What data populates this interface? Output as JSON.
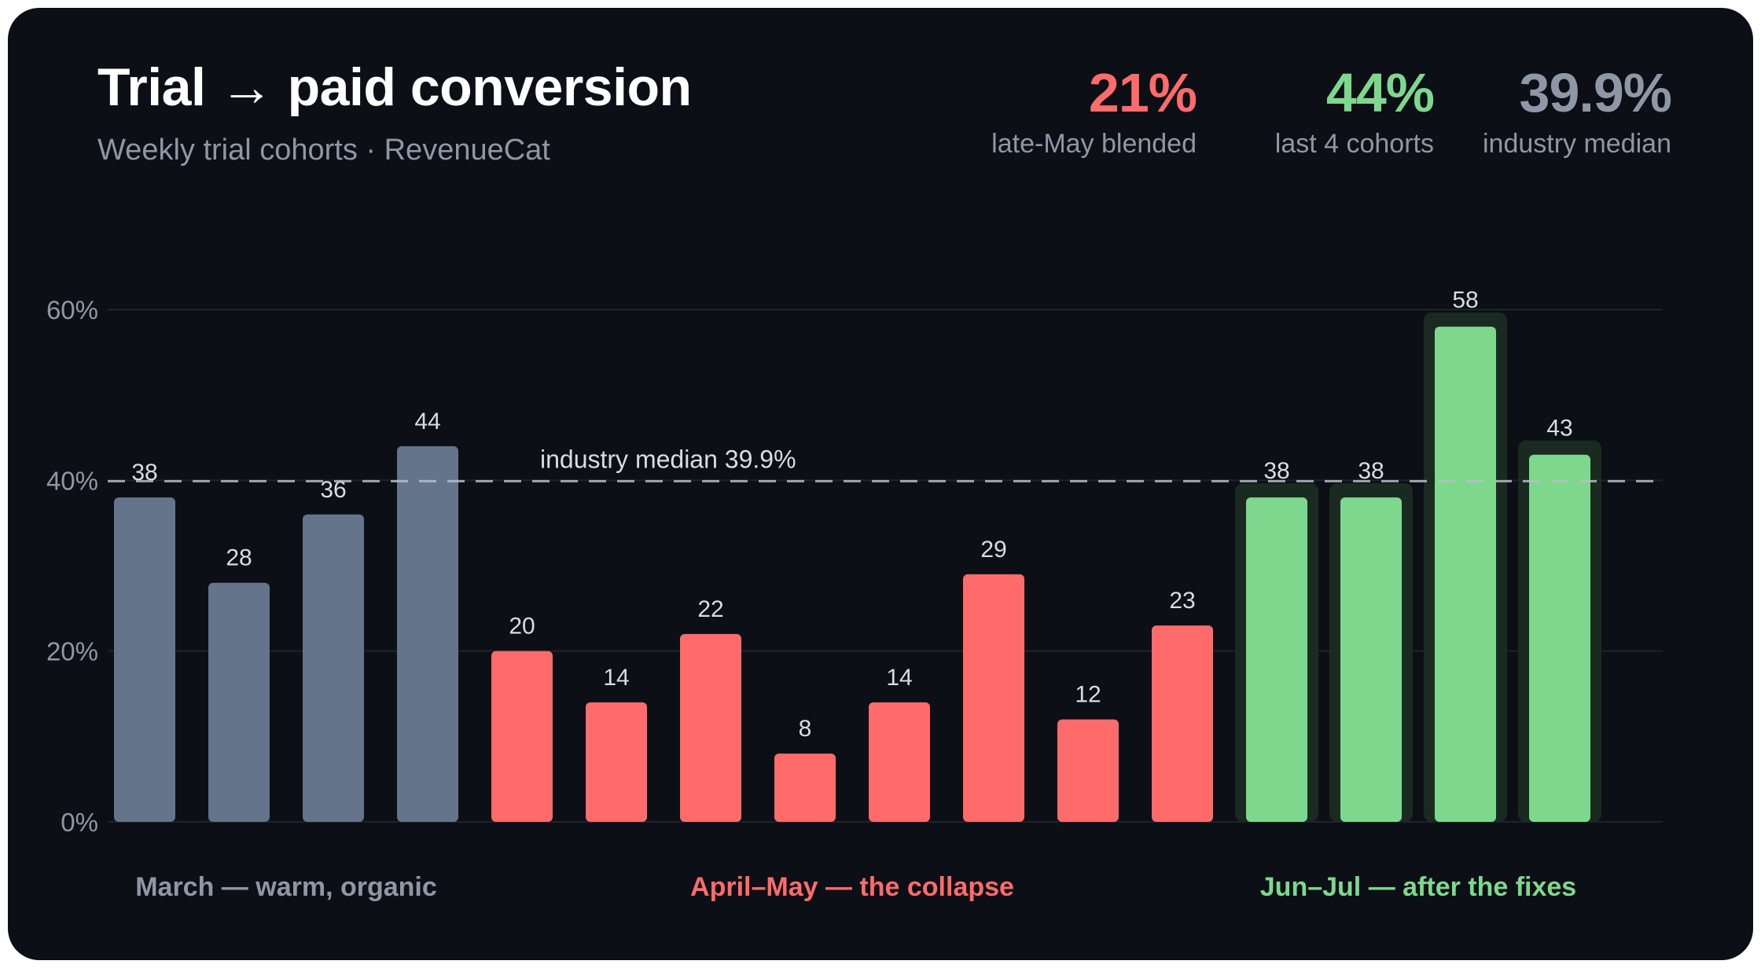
{
  "header": {
    "title": "Trial → paid conversion",
    "subtitle": "Weekly trial cohorts · RevenueCat"
  },
  "stats": [
    {
      "value": "21%",
      "label": "late-May blended",
      "color": "#ff6b6b"
    },
    {
      "value": "44%",
      "label": "last 4 cohorts",
      "color": "#7dd88e"
    },
    {
      "value": "39.9%",
      "label": "industry median",
      "color": "#8e97a6"
    }
  ],
  "colors": {
    "march": "#64748b",
    "aprmay": "#ff6b6b",
    "junjul": "#7dd88e",
    "junjul_halo": "#1a2a21",
    "grid": "#1f232b",
    "median_line": "#b8bec8"
  },
  "chart_data": {
    "type": "bar",
    "title": "Trial → paid conversion",
    "subtitle": "Weekly trial cohorts · RevenueCat",
    "ylim": [
      0,
      60
    ],
    "yticks": [
      0,
      20,
      40,
      60
    ],
    "ytick_labels": [
      "0%",
      "20%",
      "40%",
      "60%"
    ],
    "grid": true,
    "values": [
      38,
      28,
      36,
      44,
      20,
      14,
      22,
      8,
      14,
      29,
      12,
      23,
      38,
      38,
      58,
      43
    ],
    "groups": [
      "march",
      "march",
      "march",
      "march",
      "aprmay",
      "aprmay",
      "aprmay",
      "aprmay",
      "aprmay",
      "aprmay",
      "aprmay",
      "aprmay",
      "junjul",
      "junjul",
      "junjul",
      "junjul"
    ],
    "group_labels": [
      {
        "key": "march",
        "label": "March — warm, organic",
        "color": "#8e97a6"
      },
      {
        "key": "aprmay",
        "label": "April–May — the collapse",
        "color": "#ff6b6b"
      },
      {
        "key": "junjul",
        "label": "Jun–Jul — after the fixes",
        "color": "#7dd88e"
      }
    ],
    "reference_line": {
      "value": 39.9,
      "label": "industry median 39.9%"
    }
  }
}
